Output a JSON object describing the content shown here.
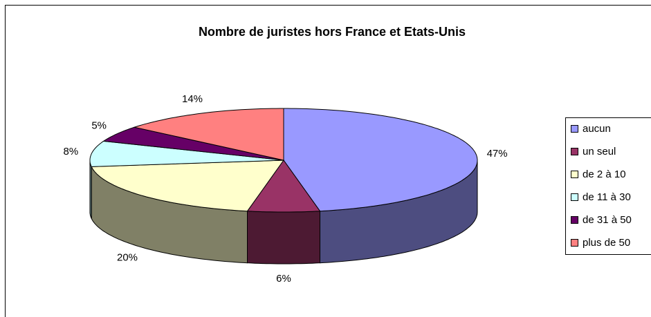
{
  "chart_data": {
    "type": "pie3d",
    "title": "Nombre de juristes hors France et Etats-Unis",
    "categories": [
      "aucun",
      "un seul",
      "de 2 à 10",
      "de 11 à 30",
      "de 31 à 50",
      "plus de 50"
    ],
    "values": [
      47,
      6,
      20,
      8,
      5,
      14
    ],
    "value_labels": [
      "47%",
      "6%",
      "20%",
      "8%",
      "5%",
      "14%"
    ],
    "colors": [
      "#9999ff",
      "#993366",
      "#ffffcc",
      "#ccffff",
      "#660066",
      "#ff8080"
    ],
    "legend": "right"
  }
}
